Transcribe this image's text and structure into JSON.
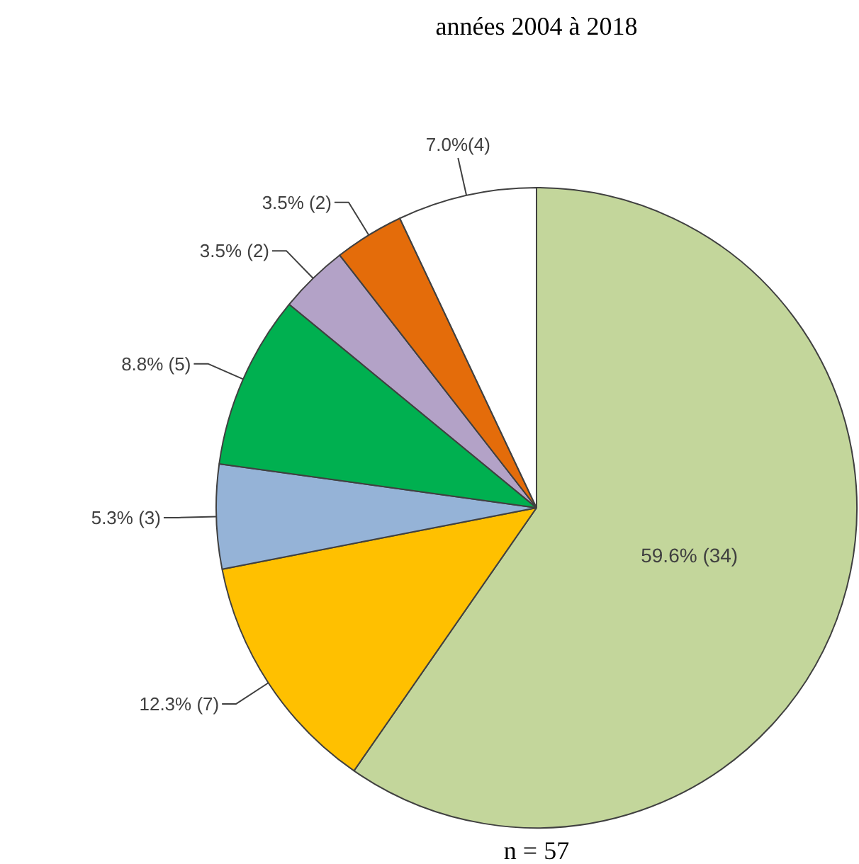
{
  "chart_data": {
    "type": "pie",
    "title": "années 2004 à 2018",
    "categories": [
      null,
      null,
      null,
      null,
      null,
      null,
      null
    ],
    "values": [
      34,
      7,
      3,
      5,
      2,
      2,
      4
    ],
    "colors": [
      "#c3d69b",
      "#ffc000",
      "#95b3d7",
      "#00b050",
      "#b3a2c7",
      "#e46c0a",
      "#ffffff"
    ],
    "value_labels": [
      "59.6% (34)",
      "12.3% (7)",
      "5.3% (3)",
      "8.8% (5)",
      "3.5% (2)",
      "3.5% (2)",
      "7.0%(4)"
    ],
    "annotations": [
      "n = 57"
    ]
  }
}
